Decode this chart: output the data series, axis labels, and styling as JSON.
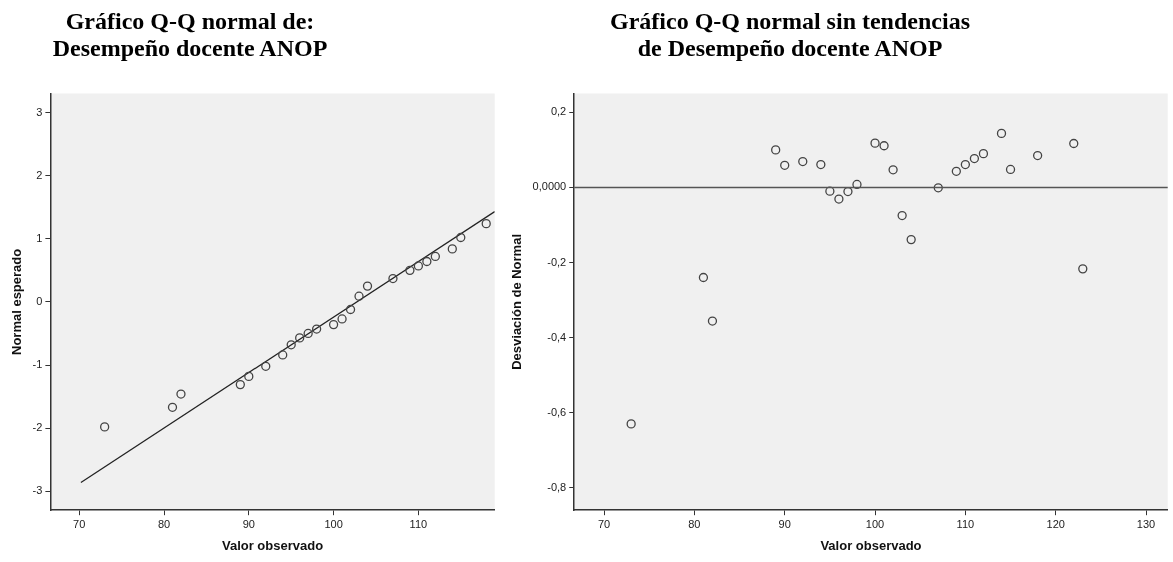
{
  "chart_data": [
    {
      "type": "scatter",
      "title": "Gráfico Q-Q normal de:\nDesempeño docente ANOP",
      "xlabel": "Valor observado",
      "ylabel": "Normal esperado",
      "grid": false,
      "legend": false,
      "xlim": [
        66.6,
        119
      ],
      "xticks": [
        70,
        80,
        90,
        100,
        110
      ],
      "ylim": [
        -3.3,
        3.3
      ],
      "yticks": [
        -3,
        -2,
        -1,
        0,
        1,
        2,
        3
      ],
      "series": [
        {
          "marker": "circle",
          "color": "#444444",
          "x": [
            73,
            81,
            82,
            89,
            90,
            92,
            94,
            95,
            96,
            97,
            98,
            100,
            101,
            102,
            103,
            104,
            107,
            109,
            110,
            111,
            112,
            114,
            115,
            118
          ],
          "values": [
            -1.98,
            -1.67,
            -1.46,
            -1.31,
            -1.18,
            -1.02,
            -0.84,
            -0.68,
            -0.57,
            -0.5,
            -0.43,
            -0.36,
            -0.27,
            -0.12,
            0.09,
            0.25,
            0.37,
            0.5,
            0.57,
            0.64,
            0.72,
            0.84,
            1.02,
            1.24
          ]
        },
        {
          "type": "line",
          "color": "#222222",
          "x": [
            70.2,
            119
          ],
          "values": [
            -2.86,
            1.43
          ]
        }
      ]
    },
    {
      "type": "scatter",
      "title": "Gráfico Q-Q normal sin tendencias\nde Desempeño docente ANOP",
      "xlabel": "Valor observado",
      "ylabel": "Desviación de Normal",
      "marker": "circle",
      "grid": false,
      "legend": false,
      "xlim": [
        66.7,
        132.4
      ],
      "xticks": [
        70,
        80,
        90,
        100,
        110,
        120,
        130
      ],
      "ylim": [
        -0.86,
        0.25
      ],
      "yticks": [
        {
          "value": -0.8,
          "label": "-0,8"
        },
        {
          "value": -0.6,
          "label": "-0,6"
        },
        {
          "value": -0.4,
          "label": "-0,4"
        },
        {
          "value": -0.2,
          "label": "-0,2"
        },
        {
          "value": 0,
          "label": "0,0000"
        },
        {
          "value": 0.2,
          "label": "0,2"
        }
      ],
      "ref_lines": [
        {
          "axis": "y",
          "value": 0,
          "color": "#555555"
        }
      ],
      "series": [
        {
          "color": "#444444",
          "x": [
            73,
            81,
            82,
            89,
            90,
            92,
            94,
            95,
            96,
            97,
            98,
            100,
            101,
            102,
            103,
            104,
            107,
            109,
            110,
            111,
            112,
            114,
            115,
            118,
            122,
            123
          ],
          "values": [
            -0.63,
            -0.24,
            -0.356,
            0.1,
            0.059,
            0.069,
            0.061,
            -0.01,
            -0.031,
            -0.011,
            0.008,
            0.118,
            0.111,
            0.047,
            -0.075,
            -0.139,
            -0.001,
            0.043,
            0.061,
            0.077,
            0.09,
            0.144,
            0.048,
            0.085,
            0.117,
            -0.217
          ]
        }
      ]
    }
  ]
}
